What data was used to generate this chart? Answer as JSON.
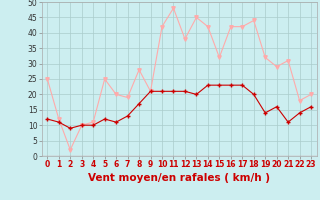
{
  "x": [
    0,
    1,
    2,
    3,
    4,
    5,
    6,
    7,
    8,
    9,
    10,
    11,
    12,
    13,
    14,
    15,
    16,
    17,
    18,
    19,
    20,
    21,
    22,
    23
  ],
  "wind_avg": [
    12,
    11,
    9,
    10,
    10,
    12,
    11,
    13,
    17,
    21,
    21,
    21,
    21,
    20,
    23,
    23,
    23,
    23,
    20,
    14,
    16,
    11,
    14,
    16
  ],
  "wind_gust": [
    25,
    12,
    2,
    10,
    11,
    25,
    20,
    19,
    28,
    21,
    42,
    48,
    38,
    45,
    42,
    32,
    42,
    42,
    44,
    32,
    29,
    31,
    18,
    20
  ],
  "avg_color": "#cc0000",
  "gust_color": "#ffaaaa",
  "bg_color": "#cceef0",
  "grid_color": "#aacccc",
  "xlabel": "Vent moyen/en rafales ( km/h )",
  "ylim": [
    0,
    50
  ],
  "yticks": [
    0,
    5,
    10,
    15,
    20,
    25,
    30,
    35,
    40,
    45,
    50
  ],
  "xlim": [
    -0.5,
    23.5
  ],
  "tick_fontsize": 5.5,
  "label_fontsize": 7.5
}
